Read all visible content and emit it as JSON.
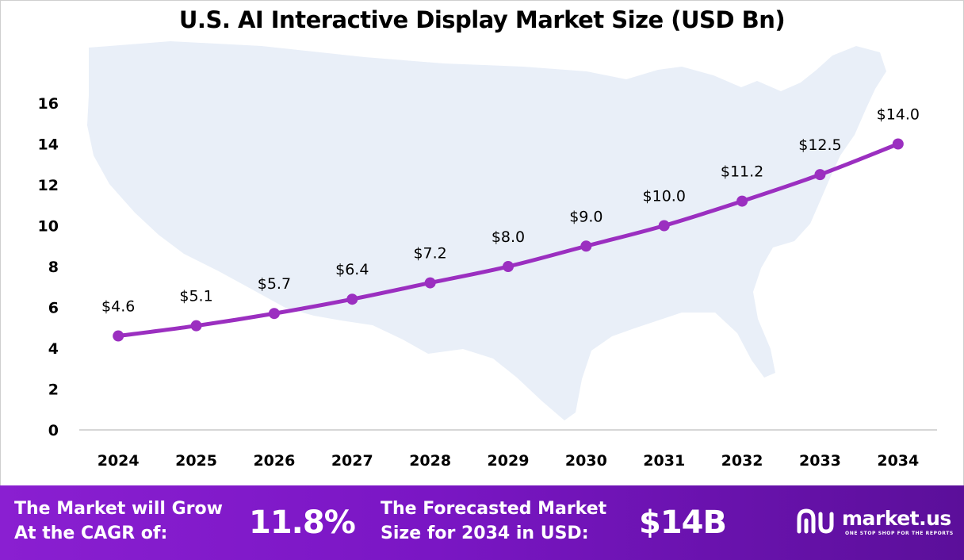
{
  "colors": {
    "line": "#9b2fc0",
    "marker": "#9b2fc0",
    "map": "#e9eff8",
    "footer_start": "#8a1fd1",
    "footer_end": "#5b0f9a"
  },
  "chart_data": {
    "type": "line",
    "title": "U.S. AI Interactive Display Market Size (USD Bn)",
    "x": [
      "2024",
      "2025",
      "2026",
      "2027",
      "2028",
      "2029",
      "2030",
      "2031",
      "2032",
      "2033",
      "2034"
    ],
    "series": [
      {
        "values": [
          4.6,
          5.1,
          5.7,
          6.4,
          7.2,
          8.0,
          9.0,
          10.0,
          11.2,
          12.5,
          14.0
        ],
        "labels": [
          "$4.6",
          "$5.1",
          "$5.7",
          "$6.4",
          "$7.2",
          "$8.0",
          "$9.0",
          "$10.0",
          "$11.2",
          "$12.5",
          "$14.0"
        ]
      }
    ],
    "y_ticks": [
      "0",
      "2",
      "4",
      "6",
      "8",
      "10",
      "12",
      "14",
      "16"
    ],
    "ylim": [
      0,
      16
    ],
    "grid": false,
    "background": "us-map-silhouette"
  },
  "footer": {
    "cagr_text_line1": "The Market will Grow",
    "cagr_text_line2": "At the CAGR of:",
    "cagr_value": "11.8%",
    "forecast_text_line1": "The Forecasted Market",
    "forecast_text_line2": "Size for 2034 in USD:",
    "forecast_value": "$14B"
  },
  "brand": {
    "name": "market.us",
    "tagline": "ONE STOP SHOP FOR THE REPORTS",
    "icon": "market-us-logo-icon"
  }
}
